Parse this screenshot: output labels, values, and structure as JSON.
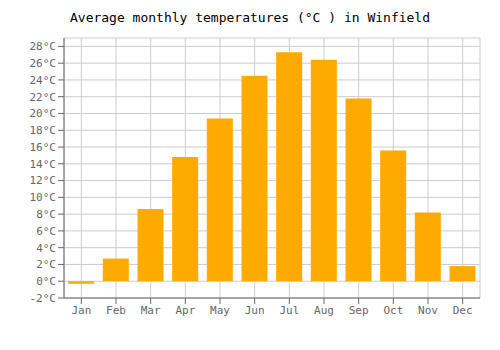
{
  "chart_data": {
    "type": "bar",
    "title": "Average monthly temperatures (°C ) in Winfield",
    "categories": [
      "Jan",
      "Feb",
      "Mar",
      "Apr",
      "May",
      "Jun",
      "Jul",
      "Aug",
      "Sep",
      "Oct",
      "Nov",
      "Dec"
    ],
    "values": [
      -0.3,
      2.7,
      8.6,
      14.8,
      19.4,
      24.5,
      27.3,
      26.4,
      21.8,
      15.6,
      8.2,
      1.8
    ],
    "color": "#FFAA00",
    "ylim": [
      -2,
      29
    ],
    "yticks": [
      {
        "value": -2,
        "label": "-2°C"
      },
      {
        "value": 0,
        "label": "0°C"
      },
      {
        "value": 2,
        "label": "2°C"
      },
      {
        "value": 4,
        "label": "4°C"
      },
      {
        "value": 6,
        "label": "6°C"
      },
      {
        "value": 8,
        "label": "8°C"
      },
      {
        "value": 10,
        "label": "10°C"
      },
      {
        "value": 12,
        "label": "12°C"
      },
      {
        "value": 14,
        "label": "14°C"
      },
      {
        "value": 16,
        "label": "16°C"
      },
      {
        "value": 18,
        "label": "18°C"
      },
      {
        "value": 20,
        "label": "20°C"
      },
      {
        "value": 22,
        "label": "22°C"
      },
      {
        "value": 24,
        "label": "24°C"
      },
      {
        "value": 26,
        "label": "26°C"
      },
      {
        "value": 28,
        "label": "28°C"
      }
    ],
    "grid": true
  }
}
